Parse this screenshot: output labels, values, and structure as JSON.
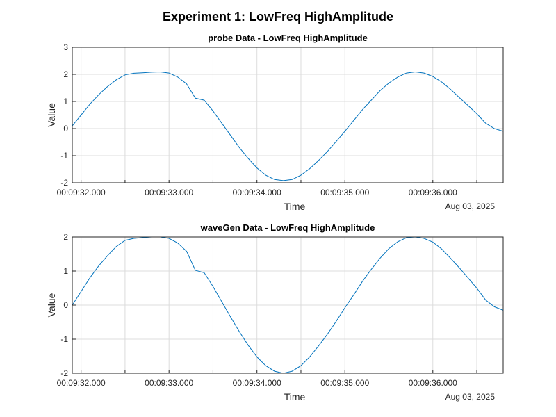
{
  "figure": {
    "supertitle": "Experiment 1: LowFreq HighAmplitude"
  },
  "chart_data": [
    {
      "type": "line",
      "title": "probe Data - LowFreq HighAmplitude",
      "xlabel": "Time",
      "ylabel": "Value",
      "date_label": "Aug 03, 2025",
      "xlim": [
        "00:09:31.900",
        "00:09:36.800"
      ],
      "ylim": [
        -2,
        3
      ],
      "yticks": [
        "3",
        "2",
        "1",
        "0",
        "-1",
        "-2"
      ],
      "yticks_values": [
        3,
        2,
        1,
        0,
        -1,
        -2
      ],
      "xticks": [
        "00:09:32.000",
        "00:09:33.000",
        "00:09:34.000",
        "00:09:35.000",
        "00:09:36.000"
      ],
      "xticks_values": [
        "00:09:32.000",
        "00:09:33.000",
        "00:09:34.000",
        "00:09:35.000",
        "00:09:36.000"
      ],
      "grid": true,
      "line_color": "#0072BD",
      "series": [
        {
          "x": [
            "00:09:31.900",
            "00:09:32.000",
            "00:09:32.100",
            "00:09:32.200",
            "00:09:32.300",
            "00:09:32.400",
            "00:09:32.500",
            "00:09:32.600",
            "00:09:32.700",
            "00:09:32.800",
            "00:09:32.900",
            "00:09:33.000",
            "00:09:33.100",
            "00:09:33.200",
            "00:09:33.300",
            "00:09:33.400",
            "00:09:33.500",
            "00:09:33.600",
            "00:09:33.700",
            "00:09:33.800",
            "00:09:33.900",
            "00:09:34.000",
            "00:09:34.100",
            "00:09:34.200",
            "00:09:34.300",
            "00:09:34.400",
            "00:09:34.500",
            "00:09:34.600",
            "00:09:34.700",
            "00:09:34.800",
            "00:09:34.900",
            "00:09:35.000",
            "00:09:35.100",
            "00:09:35.200",
            "00:09:35.300",
            "00:09:35.400",
            "00:09:35.500",
            "00:09:35.600",
            "00:09:35.700",
            "00:09:35.800",
            "00:09:35.900",
            "00:09:36.000",
            "00:09:36.100",
            "00:09:36.200",
            "00:09:36.300",
            "00:09:36.400",
            "00:09:36.500",
            "00:09:36.600",
            "00:09:36.700",
            "00:09:36.800"
          ],
          "y": [
            0.1,
            0.5,
            0.9,
            1.25,
            1.55,
            1.8,
            1.98,
            2.04,
            2.06,
            2.08,
            2.09,
            2.05,
            1.9,
            1.65,
            1.12,
            1.05,
            0.65,
            0.2,
            -0.25,
            -0.7,
            -1.1,
            -1.45,
            -1.72,
            -1.88,
            -1.92,
            -1.88,
            -1.72,
            -1.48,
            -1.18,
            -0.85,
            -0.48,
            -0.1,
            0.3,
            0.7,
            1.05,
            1.4,
            1.68,
            1.9,
            2.05,
            2.09,
            2.05,
            1.92,
            1.72,
            1.45,
            1.15,
            0.85,
            0.55,
            0.2,
            0.0,
            -0.1
          ]
        }
      ]
    },
    {
      "type": "line",
      "title": "waveGen Data - LowFreq HighAmplitude",
      "xlabel": "Time",
      "ylabel": "Value",
      "date_label": "Aug 03, 2025",
      "xlim": [
        "00:09:31.900",
        "00:09:36.800"
      ],
      "ylim": [
        -2,
        2
      ],
      "yticks": [
        "2",
        "1",
        "0",
        "-1",
        "-2"
      ],
      "yticks_values": [
        2,
        1,
        0,
        -1,
        -2
      ],
      "xticks": [
        "00:09:32.000",
        "00:09:33.000",
        "00:09:34.000",
        "00:09:35.000",
        "00:09:36.000"
      ],
      "xticks_values": [
        "00:09:32.000",
        "00:09:33.000",
        "00:09:34.000",
        "00:09:35.000",
        "00:09:36.000"
      ],
      "grid": true,
      "line_color": "#0072BD",
      "series": [
        {
          "x": [
            "00:09:31.900",
            "00:09:32.000",
            "00:09:32.100",
            "00:09:32.200",
            "00:09:32.300",
            "00:09:32.400",
            "00:09:32.500",
            "00:09:32.600",
            "00:09:32.700",
            "00:09:32.800",
            "00:09:32.900",
            "00:09:33.000",
            "00:09:33.100",
            "00:09:33.200",
            "00:09:33.300",
            "00:09:33.400",
            "00:09:33.500",
            "00:09:33.600",
            "00:09:33.700",
            "00:09:33.800",
            "00:09:33.900",
            "00:09:34.000",
            "00:09:34.100",
            "00:09:34.200",
            "00:09:34.300",
            "00:09:34.400",
            "00:09:34.500",
            "00:09:34.600",
            "00:09:34.700",
            "00:09:34.800",
            "00:09:34.900",
            "00:09:35.000",
            "00:09:35.100",
            "00:09:35.200",
            "00:09:35.300",
            "00:09:35.400",
            "00:09:35.500",
            "00:09:35.600",
            "00:09:35.700",
            "00:09:35.800",
            "00:09:35.900",
            "00:09:36.000",
            "00:09:36.100",
            "00:09:36.200",
            "00:09:36.300",
            "00:09:36.400",
            "00:09:36.500",
            "00:09:36.600",
            "00:09:36.700",
            "00:09:36.800"
          ],
          "y": [
            0.0,
            0.4,
            0.8,
            1.15,
            1.45,
            1.72,
            1.9,
            1.96,
            1.98,
            2.0,
            2.0,
            1.96,
            1.82,
            1.58,
            1.02,
            0.95,
            0.55,
            0.1,
            -0.35,
            -0.78,
            -1.18,
            -1.52,
            -1.78,
            -1.94,
            -2.0,
            -1.94,
            -1.78,
            -1.52,
            -1.2,
            -0.86,
            -0.48,
            -0.08,
            0.3,
            0.7,
            1.05,
            1.38,
            1.66,
            1.86,
            1.98,
            2.0,
            1.96,
            1.85,
            1.65,
            1.38,
            1.1,
            0.8,
            0.5,
            0.15,
            -0.05,
            -0.15
          ]
        }
      ]
    }
  ]
}
